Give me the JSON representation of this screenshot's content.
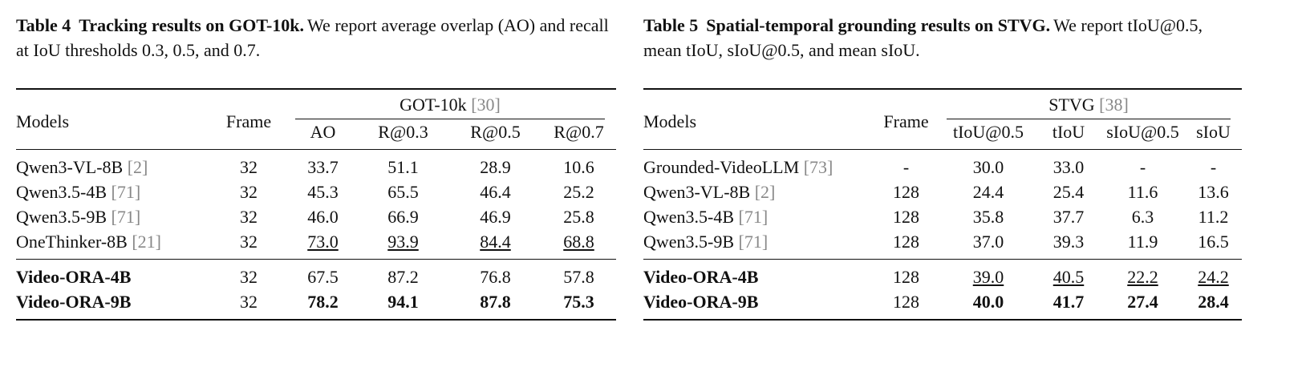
{
  "tables": [
    {
      "caption": {
        "label": "Table 4",
        "title": "Tracking results on GOT-10k.",
        "text": "We report average overlap (AO) and recall at IoU thresholds 0.3, 0.5, and 0.7."
      },
      "header": {
        "models": "Models",
        "frame": "Frame",
        "group": "GOT-10k",
        "group_cite": "[30]",
        "columns": [
          "AO",
          "R@0.3",
          "R@0.5",
          "R@0.7"
        ]
      },
      "rows": [
        {
          "model": "Qwen3-VL-8B",
          "cite": "[2]",
          "cells": [
            "32",
            "33.7",
            "51.1",
            "28.9",
            "10.6"
          ]
        },
        {
          "model": "Qwen3.5-4B",
          "cite": "[71]",
          "cells": [
            "32",
            "45.3",
            "65.5",
            "46.4",
            "25.2"
          ]
        },
        {
          "model": "Qwen3.5-9B",
          "cite": "[71]",
          "cells": [
            "32",
            "46.0",
            "66.9",
            "46.9",
            "25.8"
          ]
        },
        {
          "model": "OneThinker-8B",
          "cite": "[21]",
          "cells": [
            "32",
            "73.0",
            "93.9",
            "84.4",
            "68.8"
          ]
        },
        {
          "model": "Video-ORA-4B",
          "cells": [
            "32",
            "67.5",
            "87.2",
            "76.8",
            "57.8"
          ]
        },
        {
          "model": "Video-ORA-9B",
          "cells": [
            "32",
            "78.2",
            "94.1",
            "87.8",
            "75.3"
          ]
        }
      ]
    },
    {
      "caption": {
        "label": "Table 5",
        "title": "Spatial-temporal grounding results on STVG.",
        "text": "We report tIoU@0.5, mean tIoU, sIoU@0.5, and mean sIoU."
      },
      "header": {
        "models": "Models",
        "frame": "Frame",
        "group": "STVG",
        "group_cite": "[38]",
        "columns": [
          "tIoU@0.5",
          "tIoU",
          "sIoU@0.5",
          "sIoU"
        ]
      },
      "rows": [
        {
          "model": "Grounded-VideoLLM",
          "cite": "[73]",
          "cells": [
            "-",
            "30.0",
            "33.0",
            "-",
            "-"
          ]
        },
        {
          "model": "Qwen3-VL-8B",
          "cite": "[2]",
          "cells": [
            "128",
            "24.4",
            "25.4",
            "11.6",
            "13.6"
          ]
        },
        {
          "model": "Qwen3.5-4B",
          "cite": "[71]",
          "cells": [
            "128",
            "35.8",
            "37.7",
            "6.3",
            "11.2"
          ]
        },
        {
          "model": "Qwen3.5-9B",
          "cite": "[71]",
          "cells": [
            "128",
            "37.0",
            "39.3",
            "11.9",
            "16.5"
          ]
        },
        {
          "model": "Video-ORA-4B",
          "cells": [
            "128",
            "39.0",
            "40.5",
            "22.2",
            "24.2"
          ]
        },
        {
          "model": "Video-ORA-9B",
          "cells": [
            "128",
            "40.0",
            "41.7",
            "27.4",
            "28.4"
          ]
        }
      ]
    }
  ]
}
